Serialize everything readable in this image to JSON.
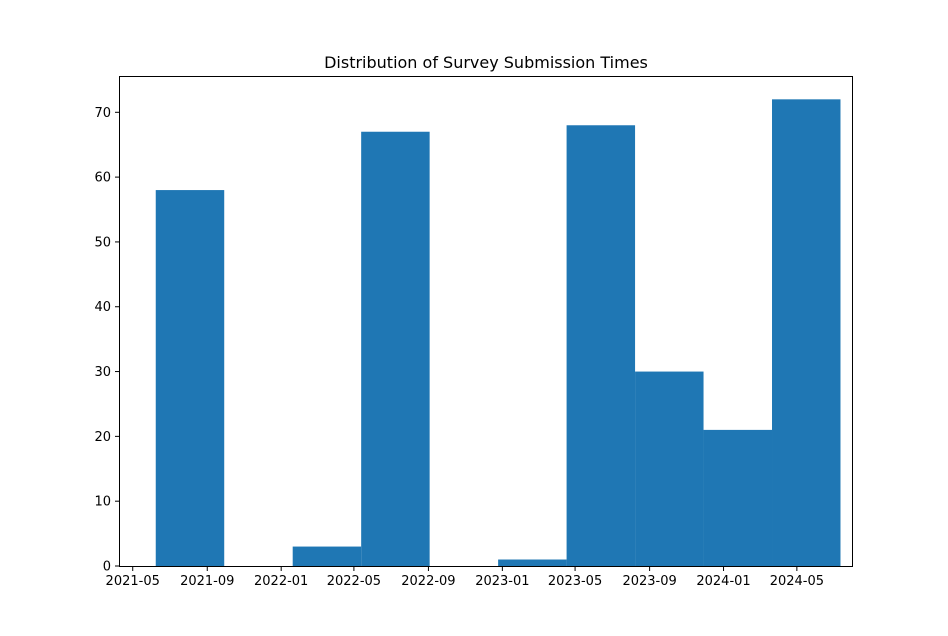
{
  "chart_data": {
    "type": "bar",
    "title": "Distribution of Survey Submission Times",
    "xlabel": "",
    "ylabel": "",
    "bar_color": "#1f77b4",
    "x_axis_type": "date",
    "xlim": [
      "2021-04-10",
      "2024-07-31"
    ],
    "ylim": [
      0,
      75.6
    ],
    "x_ticks": [
      "2021-05",
      "2021-09",
      "2022-01",
      "2022-05",
      "2022-09",
      "2023-01",
      "2023-05",
      "2023-09",
      "2024-01",
      "2024-05"
    ],
    "y_ticks": [
      0,
      10,
      20,
      30,
      40,
      50,
      60,
      70
    ],
    "grid": false,
    "bins": [
      {
        "start": "2021-06-08",
        "end": "2021-09-29",
        "value": 58
      },
      {
        "start": "2021-09-29",
        "end": "2022-01-20",
        "value": 0
      },
      {
        "start": "2022-01-20",
        "end": "2022-05-13",
        "value": 3
      },
      {
        "start": "2022-05-13",
        "end": "2022-09-03",
        "value": 67
      },
      {
        "start": "2022-09-03",
        "end": "2022-12-25",
        "value": 0
      },
      {
        "start": "2022-12-25",
        "end": "2023-04-17",
        "value": 1
      },
      {
        "start": "2023-04-17",
        "end": "2023-08-08",
        "value": 68
      },
      {
        "start": "2023-08-08",
        "end": "2023-11-29",
        "value": 30
      },
      {
        "start": "2023-11-29",
        "end": "2024-03-21",
        "value": 21
      },
      {
        "start": "2024-03-21",
        "end": "2024-07-12",
        "value": 72
      }
    ]
  }
}
